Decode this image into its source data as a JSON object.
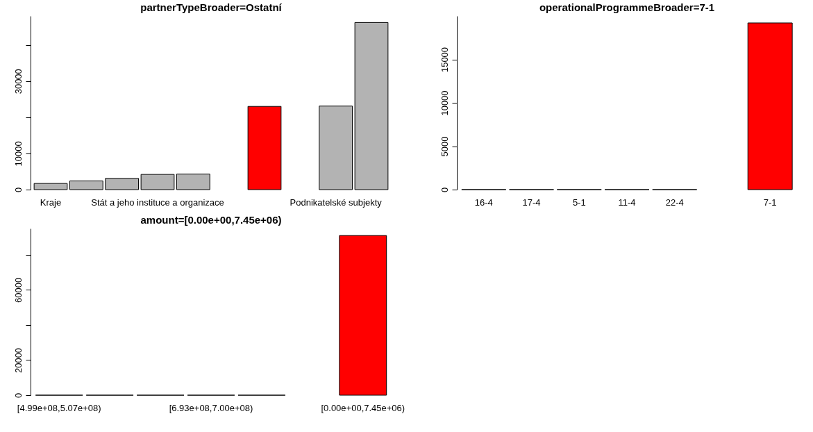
{
  "chart_data": [
    {
      "type": "bar",
      "title": "partnerTypeBroader=Ostatní",
      "categories": [
        "Kraje",
        null,
        null,
        "Stát a jeho instituce a organizace",
        null,
        null,
        "Podnikatelské subjekty",
        null
      ],
      "values": [
        1700,
        2400,
        3100,
        4200,
        4300,
        23000,
        23100,
        46200
      ],
      "colors": [
        "#b3b3b3",
        "#b3b3b3",
        "#b3b3b3",
        "#b3b3b3",
        "#b3b3b3",
        "#ff0000",
        "#b3b3b3",
        "#b3b3b3"
      ],
      "ylim": [
        0,
        48000
      ],
      "yticks": [
        0,
        10000,
        {
          "value": 20000,
          "label": null
        },
        30000,
        {
          "value": 40000,
          "label": null
        }
      ]
    },
    {
      "type": "bar",
      "title": "operationalProgrammeBroader=7-1",
      "categories": [
        "16-4",
        "17-4",
        "5-1",
        "11-4",
        "22-4",
        "7-1"
      ],
      "values": [
        0,
        0,
        0,
        0,
        0,
        19200
      ],
      "colors": [
        "#b3b3b3",
        "#b3b3b3",
        "#b3b3b3",
        "#b3b3b3",
        "#b3b3b3",
        "#ff0000"
      ],
      "ylim": [
        0,
        20000
      ],
      "yticks": [
        0,
        5000,
        10000,
        15000
      ]
    },
    {
      "type": "bar",
      "title": "amount=[0.00e+00,7.45e+06)",
      "categories": [
        "[4.99e+08,5.07e+08)",
        null,
        null,
        "[6.93e+08,7.00e+08)",
        null,
        "[0.00e+00,7.45e+06)"
      ],
      "values": [
        0,
        0,
        0,
        0,
        0,
        91000
      ],
      "colors": [
        "#b3b3b3",
        "#b3b3b3",
        "#b3b3b3",
        "#b3b3b3",
        "#b3b3b3",
        "#ff0000"
      ],
      "ylim": [
        0,
        95000
      ],
      "yticks": [
        0,
        20000,
        {
          "value": 40000,
          "label": null
        },
        60000,
        {
          "value": 80000,
          "label": null
        }
      ]
    }
  ]
}
